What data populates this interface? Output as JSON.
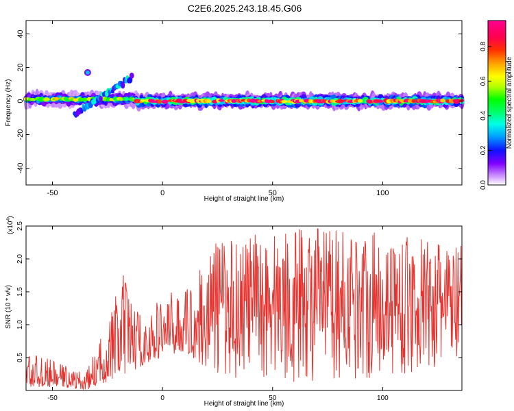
{
  "title": "C2E6.2025.243.18.45.G06",
  "chart_data": [
    {
      "type": "heatmap",
      "xlabel": "Height of straight line (km)",
      "ylabel": "Frequency (Hz)",
      "xlim": [
        -62,
        136
      ],
      "ylim": [
        -50,
        48
      ],
      "x_ticks": [
        -50,
        0,
        50,
        100
      ],
      "y_ticks": [
        40,
        20,
        0,
        -20,
        -40
      ],
      "colorbar": {
        "label": "Normalized spectral amplitude",
        "range": [
          0,
          0.95
        ],
        "ticks": [
          0.0,
          0.2,
          0.4,
          0.6,
          0.8
        ]
      },
      "features": [
        {
          "x_range": [
            -62,
            -12
          ],
          "frequency": 1,
          "amplitude": 0.6
        },
        {
          "x_range": [
            -12,
            136
          ],
          "frequency": 0,
          "amplitude": 0.9
        },
        {
          "x_range": [
            -40,
            -14
          ],
          "frequency_range": [
            -8,
            14
          ],
          "amplitude": 0.4
        },
        {
          "x": -34,
          "frequency": 17,
          "amplitude": 0.3
        }
      ]
    },
    {
      "type": "line",
      "xlabel": "Height of straight line (km)",
      "ylabel": "SNR (10 * v/v)",
      "y_multiplier": "(x10",
      "y_multiplier_exp": "4",
      "y_multiplier_close": ")",
      "xlim": [
        -62,
        136
      ],
      "ylim": [
        0,
        2.5
      ],
      "x_ticks": [
        -50,
        0,
        50,
        100
      ],
      "y_ticks": [
        0.5,
        1.0,
        1.5,
        2.0,
        2.5
      ],
      "color": "#e8312c",
      "envelope": [
        {
          "x": -62,
          "low": 0.05,
          "high": 0.6
        },
        {
          "x": -45,
          "low": 0.05,
          "high": 0.4
        },
        {
          "x": -35,
          "low": 0.0,
          "high": 0.25
        },
        {
          "x": -28,
          "low": 0.1,
          "high": 0.8
        },
        {
          "x": -18,
          "low": 0.2,
          "high": 1.8
        },
        {
          "x": -8,
          "low": 0.4,
          "high": 1.0
        },
        {
          "x": 0,
          "low": 0.5,
          "high": 1.5
        },
        {
          "x": 10,
          "low": 0.6,
          "high": 1.5
        },
        {
          "x": 25,
          "low": 0.2,
          "high": 2.3
        },
        {
          "x": 60,
          "low": 0.1,
          "high": 2.5
        },
        {
          "x": 100,
          "low": 0.2,
          "high": 2.4
        },
        {
          "x": 136,
          "low": 0.3,
          "high": 2.2
        }
      ]
    }
  ]
}
